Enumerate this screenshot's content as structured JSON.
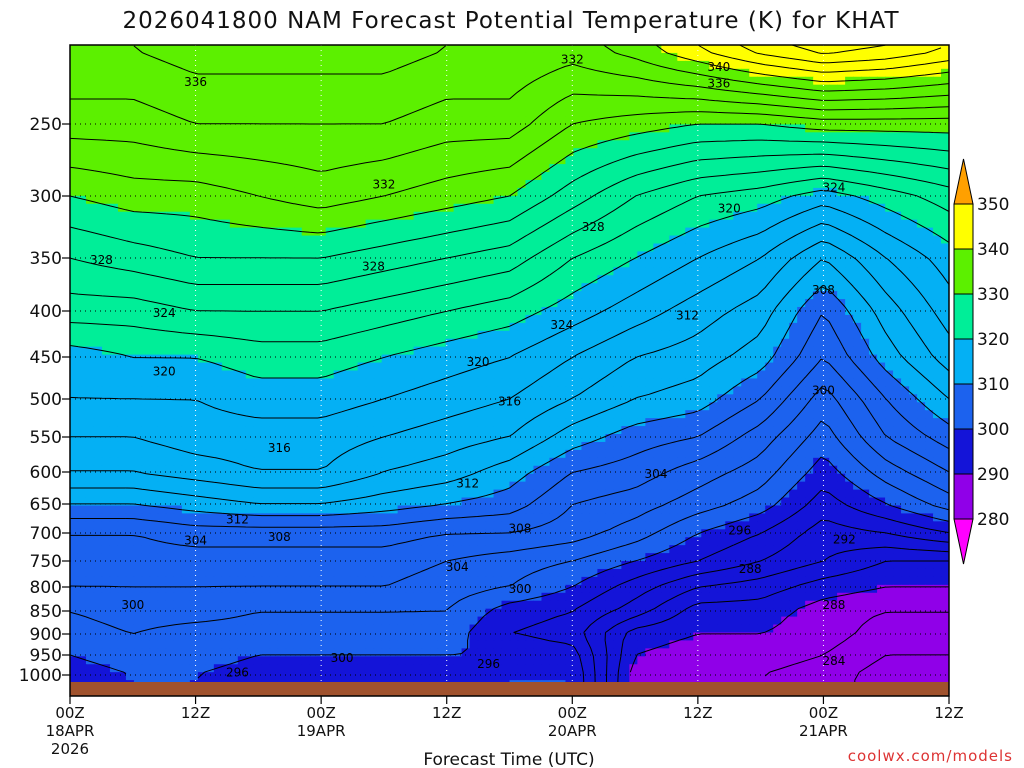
{
  "title": "2026041800 NAM Forecast Potential Temperature (K) for KHAT",
  "xlabel": "Forecast Time (UTC)",
  "credit": "coolwx.com/models",
  "x_ticks": [
    {
      "label": "00Z",
      "sub1": "18APR",
      "sub2": "2026",
      "hour": 0
    },
    {
      "label": "12Z",
      "sub1": "",
      "sub2": "",
      "hour": 12
    },
    {
      "label": "00Z",
      "sub1": "19APR",
      "sub2": "",
      "hour": 24
    },
    {
      "label": "12Z",
      "sub1": "",
      "sub2": "",
      "hour": 36
    },
    {
      "label": "00Z",
      "sub1": "20APR",
      "sub2": "",
      "hour": 48
    },
    {
      "label": "12Z",
      "sub1": "",
      "sub2": "",
      "hour": 60
    },
    {
      "label": "00Z",
      "sub1": "21APR",
      "sub2": "",
      "hour": 72
    },
    {
      "label": "12Z",
      "sub1": "",
      "sub2": "",
      "hour": 84
    }
  ],
  "y_ticks": [
    "250",
    "300",
    "350",
    "400",
    "450",
    "500",
    "550",
    "600",
    "650",
    "700",
    "750",
    "800",
    "850",
    "900",
    "950",
    "1000"
  ],
  "legend": {
    "labels": [
      "350",
      "340",
      "330",
      "320",
      "310",
      "300",
      "290",
      "280"
    ],
    "bands": [
      {
        "from": 280,
        "to": 290,
        "color": "#9000e8"
      },
      {
        "from": 290,
        "to": 300,
        "color": "#1414d8"
      },
      {
        "from": 300,
        "to": 310,
        "color": "#1c62ee"
      },
      {
        "from": 310,
        "to": 320,
        "color": "#04b0f4"
      },
      {
        "from": 320,
        "to": 330,
        "color": "#00ee98"
      },
      {
        "from": 330,
        "to": 340,
        "color": "#5cf000"
      },
      {
        "from": 340,
        "to": 350,
        "color": "#ffff00"
      }
    ],
    "over_color": "#ffa000",
    "under_color": "#ff00ff"
  },
  "colors": {
    "ground": "#a0522d",
    "frame": "#000000",
    "contour": "#000000"
  },
  "chart_data": {
    "type": "heatmap",
    "title": "2026041800 NAM Forecast Potential Temperature (K) for KHAT",
    "xlabel": "Forecast Time (UTC)",
    "ylabel": "",
    "x_hours": [
      0,
      6,
      12,
      18,
      24,
      30,
      36,
      42,
      48,
      54,
      60,
      66,
      72,
      78,
      84
    ],
    "y_pressure_hpa": [
      1000,
      950,
      900,
      850,
      800,
      750,
      700,
      650,
      600,
      550,
      500,
      450,
      400,
      350,
      300,
      250,
      200
    ],
    "y_axis": "pressure (hPa), reversed",
    "z_values_K": [
      [
        299,
        300,
        300,
        299,
        299,
        299,
        299,
        300,
        300,
        289,
        288,
        288,
        287,
        285,
        285
      ],
      [
        300,
        301,
        301,
        300,
        300,
        300,
        300,
        300,
        299,
        290,
        289,
        289,
        288,
        286,
        286
      ],
      [
        301,
        302,
        301,
        301,
        301,
        301,
        301,
        298,
        297,
        291,
        290,
        290,
        289,
        287,
        287
      ],
      [
        302,
        303,
        303,
        302,
        302,
        302,
        302,
        299,
        298,
        295,
        291,
        291,
        289,
        288,
        288
      ],
      [
        304,
        304,
        304,
        304,
        304,
        304,
        303,
        302,
        300,
        297,
        294,
        293,
        291,
        290,
        290
      ],
      [
        305,
        305,
        305,
        305,
        305,
        305,
        304,
        303,
        302,
        300,
        298,
        296,
        294,
        292,
        292
      ],
      [
        306,
        306,
        307,
        307,
        307,
        307,
        306,
        306,
        305,
        303,
        300,
        298,
        295,
        296,
        298
      ],
      [
        310,
        310,
        311,
        312,
        312,
        311,
        310,
        309,
        306,
        305,
        303,
        301,
        297,
        300,
        303
      ],
      [
        314,
        314,
        315,
        316,
        316,
        314,
        313,
        311,
        308,
        307,
        305,
        303,
        299,
        303,
        306
      ],
      [
        316,
        316,
        317,
        317,
        317,
        316,
        315,
        314,
        311,
        309,
        308,
        305,
        301,
        306,
        309
      ],
      [
        318,
        318,
        318,
        319,
        319,
        318,
        317,
        316,
        314,
        312,
        311,
        308,
        303,
        308,
        312
      ],
      [
        319,
        320,
        320,
        321,
        321,
        320,
        319,
        318,
        316,
        314,
        313,
        311,
        306,
        311,
        315
      ],
      [
        323,
        323,
        324,
        324,
        324,
        323,
        322,
        321,
        319,
        317,
        315,
        313,
        308,
        313,
        317
      ],
      [
        326,
        327,
        328,
        328,
        328,
        327,
        326,
        325,
        322,
        320,
        318,
        316,
        312,
        316,
        319
      ],
      [
        330,
        331,
        331,
        332,
        333,
        332,
        331,
        330,
        327,
        324,
        322,
        321,
        319,
        321,
        323
      ],
      [
        335,
        335,
        336,
        336,
        336,
        336,
        335,
        335,
        332,
        331,
        330,
        330,
        331,
        331,
        331
      ],
      [
        338,
        338,
        339,
        339,
        339,
        339,
        338,
        338,
        337,
        339,
        342,
        345,
        347,
        346,
        344
      ]
    ],
    "contour_interval_K": 2,
    "fill_levels_K": [
      280,
      290,
      300,
      310,
      320,
      330,
      340,
      350
    ],
    "contour_labels": [
      {
        "text": "336",
        "hour": 12,
        "p": 222
      },
      {
        "text": "332",
        "hour": 48,
        "p": 207
      },
      {
        "text": "340",
        "hour": 62,
        "p": 212
      },
      {
        "text": "336",
        "hour": 62,
        "p": 223
      },
      {
        "text": "332",
        "hour": 30,
        "p": 292
      },
      {
        "text": "328",
        "hour": 50,
        "p": 325
      },
      {
        "text": "324",
        "hour": 73,
        "p": 294
      },
      {
        "text": "320",
        "hour": 63,
        "p": 310
      },
      {
        "text": "328",
        "hour": 3,
        "p": 352
      },
      {
        "text": "328",
        "hour": 29,
        "p": 358
      },
      {
        "text": "324",
        "hour": 9,
        "p": 402
      },
      {
        "text": "324",
        "hour": 47,
        "p": 415
      },
      {
        "text": "312",
        "hour": 59,
        "p": 405
      },
      {
        "text": "308",
        "hour": 72,
        "p": 380
      },
      {
        "text": "320",
        "hour": 9,
        "p": 467
      },
      {
        "text": "320",
        "hour": 39,
        "p": 456
      },
      {
        "text": "316",
        "hour": 42,
        "p": 503
      },
      {
        "text": "300",
        "hour": 72,
        "p": 490
      },
      {
        "text": "316",
        "hour": 20,
        "p": 566
      },
      {
        "text": "304",
        "hour": 56,
        "p": 603
      },
      {
        "text": "312",
        "hour": 38,
        "p": 618
      },
      {
        "text": "312",
        "hour": 16,
        "p": 677
      },
      {
        "text": "308",
        "hour": 43,
        "p": 692
      },
      {
        "text": "304",
        "hour": 12,
        "p": 713
      },
      {
        "text": "308",
        "hour": 20,
        "p": 707
      },
      {
        "text": "296",
        "hour": 64,
        "p": 696
      },
      {
        "text": "292",
        "hour": 74,
        "p": 712
      },
      {
        "text": "304",
        "hour": 37,
        "p": 762
      },
      {
        "text": "288",
        "hour": 65,
        "p": 765
      },
      {
        "text": "300",
        "hour": 43,
        "p": 804
      },
      {
        "text": "300",
        "hour": 6,
        "p": 837
      },
      {
        "text": "288",
        "hour": 73,
        "p": 838
      },
      {
        "text": "300",
        "hour": 26,
        "p": 958
      },
      {
        "text": "296",
        "hour": 40,
        "p": 972
      },
      {
        "text": "284",
        "hour": 73,
        "p": 965
      },
      {
        "text": "296",
        "hour": 16,
        "p": 994
      }
    ]
  }
}
